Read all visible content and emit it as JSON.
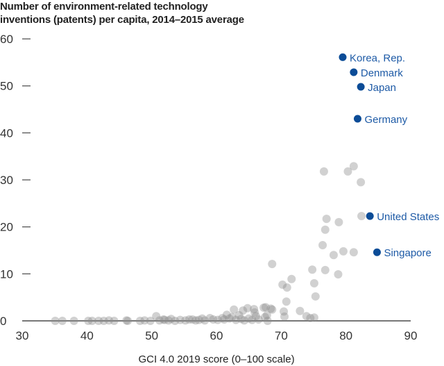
{
  "chart_data": {
    "type": "scatter",
    "title": [
      "Number of environment-related technology",
      "inventions (patents) per capita, 2014–2015 average"
    ],
    "xlabel": "GCI 4.0 2019 score (0–100 scale)",
    "ylabel": "",
    "xlim": [
      30,
      90
    ],
    "ylim": [
      0,
      60
    ],
    "xticks": [
      30,
      40,
      50,
      60,
      70,
      80,
      90
    ],
    "yticks": [
      0,
      10,
      20,
      30,
      40,
      50,
      60
    ],
    "grid": false,
    "colors": {
      "highlight": "#0b4c97",
      "highlight_label": "#1d5aa6",
      "other": "#8c8c8c"
    },
    "highlighted": [
      {
        "label": "Korea, Rep.",
        "x": 79.5,
        "y": 56.1
      },
      {
        "label": "Denmark",
        "x": 81.2,
        "y": 52.9
      },
      {
        "label": "Japan",
        "x": 82.3,
        "y": 49.8
      },
      {
        "label": "Germany",
        "x": 81.8,
        "y": 43.0
      },
      {
        "label": "United States",
        "x": 83.7,
        "y": 22.3
      },
      {
        "label": "Singapore",
        "x": 84.8,
        "y": 14.6
      }
    ],
    "others": [
      [
        76.6,
        31.8
      ],
      [
        80.3,
        31.8
      ],
      [
        81.2,
        32.9
      ],
      [
        82.3,
        29.5
      ],
      [
        82.4,
        22.3
      ],
      [
        77.0,
        21.7
      ],
      [
        78.9,
        21.0
      ],
      [
        76.8,
        19.4
      ],
      [
        76.4,
        16.1
      ],
      [
        78.1,
        14.0
      ],
      [
        79.6,
        14.8
      ],
      [
        81.2,
        14.6
      ],
      [
        68.6,
        12.1
      ],
      [
        74.8,
        10.9
      ],
      [
        76.8,
        10.8
      ],
      [
        78.8,
        9.9
      ],
      [
        71.6,
        8.9
      ],
      [
        70.2,
        7.7
      ],
      [
        70.9,
        7.1
      ],
      [
        75.1,
        8.0
      ],
      [
        75.3,
        5.2
      ],
      [
        70.8,
        4.1
      ],
      [
        72.9,
        2.1
      ],
      [
        73.9,
        1.0
      ],
      [
        74.5,
        0.6
      ],
      [
        75.1,
        0.7
      ],
      [
        70.4,
        2.0
      ],
      [
        70.5,
        0.9
      ],
      [
        68.6,
        2.4
      ],
      [
        68.4,
        2.6
      ],
      [
        67.9,
        0.0
      ],
      [
        67.3,
        2.8
      ],
      [
        67.6,
        2.9
      ],
      [
        67.8,
        1.2
      ],
      [
        67.5,
        0.8
      ],
      [
        65.8,
        2.5
      ],
      [
        65.9,
        1.8
      ],
      [
        66.1,
        1.0
      ],
      [
        64.1,
        2.2
      ],
      [
        63.5,
        1.2
      ],
      [
        62.7,
        2.4
      ],
      [
        64.8,
        2.7
      ],
      [
        61.6,
        1.3
      ],
      [
        60.9,
        0.6
      ],
      [
        61.2,
        0.3
      ],
      [
        62.0,
        0.5
      ],
      [
        62.4,
        0.8
      ],
      [
        63.0,
        0.2
      ],
      [
        63.8,
        0.4
      ],
      [
        64.3,
        0.1
      ],
      [
        65.0,
        0.5
      ],
      [
        65.5,
        0.2
      ],
      [
        66.5,
        0.3
      ],
      [
        60.2,
        0.2
      ],
      [
        59.5,
        0.3
      ],
      [
        58.2,
        0.1
      ],
      [
        57.3,
        0.2
      ],
      [
        56.8,
        0.1
      ],
      [
        56.3,
        0.3
      ],
      [
        55.2,
        0.1
      ],
      [
        54.4,
        0.2
      ],
      [
        53.6,
        0.0
      ],
      [
        52.6,
        0.1
      ],
      [
        52.0,
        0.2
      ],
      [
        51.2,
        0.1
      ],
      [
        50.7,
        1.0
      ],
      [
        49.8,
        0.0
      ],
      [
        48.9,
        0.1
      ],
      [
        48.2,
        0.0
      ],
      [
        46.1,
        0.1
      ],
      [
        46.3,
        0.0
      ],
      [
        44.2,
        0.0
      ],
      [
        43.4,
        0.1
      ],
      [
        42.6,
        0.0
      ],
      [
        41.8,
        0.0
      ],
      [
        40.8,
        0.0
      ],
      [
        40.2,
        0.0
      ],
      [
        38.0,
        0.0
      ],
      [
        36.2,
        0.0
      ],
      [
        35.1,
        0.0
      ],
      [
        51.8,
        0.3
      ],
      [
        53.0,
        0.4
      ],
      [
        55.8,
        0.3
      ],
      [
        57.8,
        0.5
      ],
      [
        59.0,
        0.6
      ]
    ]
  }
}
